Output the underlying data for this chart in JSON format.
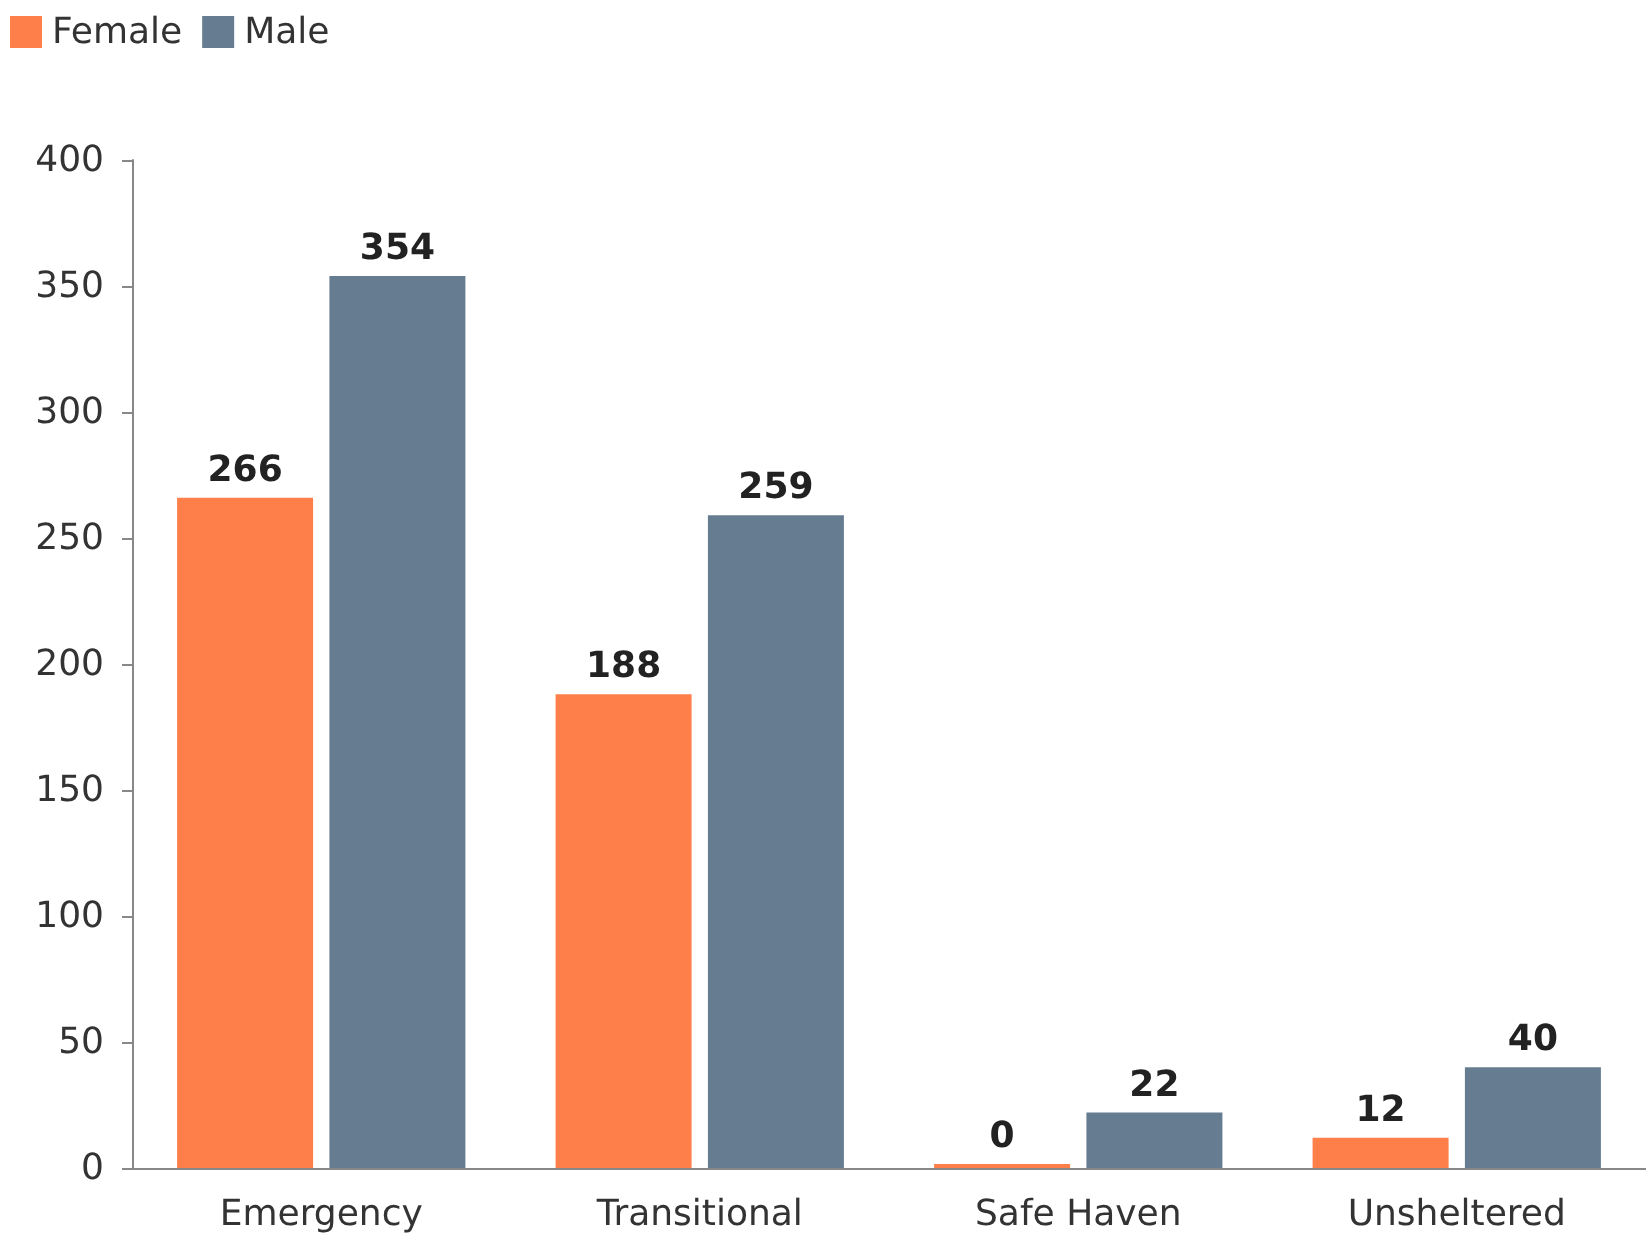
{
  "chart_data": {
    "type": "bar",
    "categories": [
      "Emergency",
      "Transitional",
      "Safe Haven",
      "Unsheltered"
    ],
    "series": [
      {
        "name": "Female",
        "color": "#ff7f4a",
        "values": [
          266,
          188,
          0,
          12
        ]
      },
      {
        "name": "Male",
        "color": "#667d91",
        "values": [
          354,
          259,
          22,
          40
        ]
      }
    ],
    "ylim": [
      0,
      400
    ],
    "yticks": [
      0,
      50,
      100,
      150,
      200,
      250,
      300,
      350,
      400
    ],
    "grid": false,
    "legend": "top left",
    "data_labels": true
  }
}
